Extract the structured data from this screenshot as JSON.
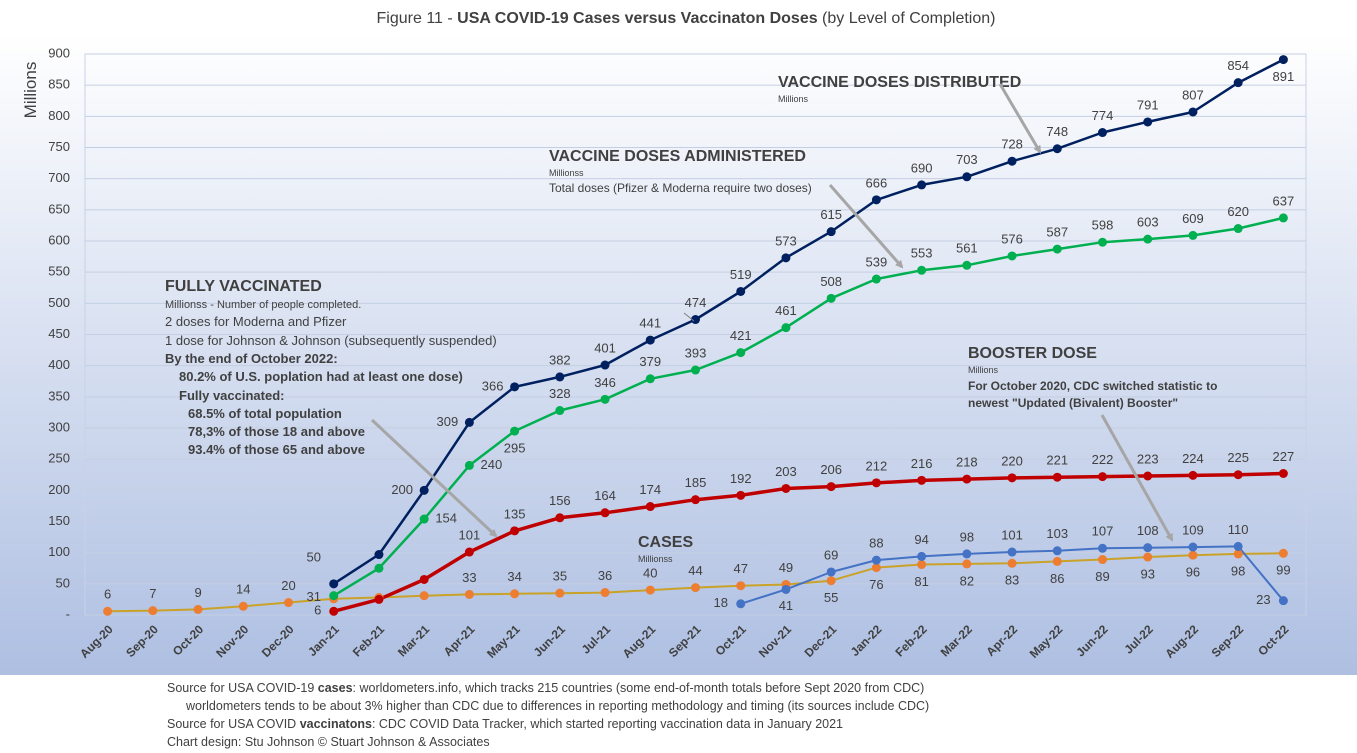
{
  "chart_data": {
    "type": "line",
    "title": [
      "Figure 11 - ",
      "USA COVID-19 Cases versus Vaccinaton Doses",
      " (by Level of Completion)"
    ],
    "y_label": "Millions",
    "categories": [
      "Aug-20",
      "Sep-20",
      "Oct-20",
      "Nov-20",
      "Dec-20",
      "Jan-21",
      "Feb-21",
      "Mar-21",
      "Apr-21",
      "May-21",
      "Jun-21",
      "Jul-21",
      "Aug-21",
      "Sep-21",
      "Oct-21",
      "Nov-21",
      "Dec-21",
      "Jan-22",
      "Feb-22",
      "Mar-22",
      "Apr-22",
      "May-22",
      "Jun-22",
      "Jul-22",
      "Aug-22",
      "Sep-22",
      "Oct-22"
    ],
    "ylim": [
      0,
      900
    ],
    "yticks": [
      {
        "value": 0,
        "label": "-"
      },
      50,
      100,
      150,
      200,
      250,
      300,
      350,
      400,
      450,
      500,
      550,
      600,
      650,
      700,
      750,
      800,
      850,
      900
    ],
    "grid": true,
    "series": [
      {
        "name": "VACCINE DOSES DISTRIBUTED",
        "color": "#002060",
        "width": 2.5,
        "values": [
          null,
          null,
          null,
          null,
          null,
          50,
          97,
          200,
          309,
          366,
          382,
          401,
          441,
          474,
          519,
          573,
          615,
          666,
          690,
          703,
          728,
          748,
          774,
          791,
          807,
          854,
          891
        ],
        "value_labels": [
          null,
          null,
          null,
          null,
          null,
          "50",
          null,
          "200",
          "309",
          "366",
          "382",
          "401",
          "441",
          "474",
          "519",
          "573",
          "615",
          "666",
          "690",
          "703",
          "728",
          "748",
          "774",
          "791",
          "807",
          "854",
          "891"
        ]
      },
      {
        "name": "VACCINE DOSES ADMINISTERED",
        "color": "#00b050",
        "width": 2.5,
        "values": [
          null,
          null,
          null,
          null,
          null,
          31,
          75,
          154,
          240,
          295,
          328,
          346,
          379,
          393,
          421,
          461,
          508,
          539,
          553,
          561,
          576,
          587,
          598,
          603,
          609,
          620,
          637
        ],
        "value_labels": [
          null,
          null,
          null,
          null,
          null,
          "31",
          null,
          "154",
          "240",
          "295",
          "328",
          "346",
          "379",
          "393",
          "421",
          "461",
          "508",
          "539",
          "553",
          "561",
          "576",
          "587",
          "598",
          "603",
          "609",
          "620",
          "637"
        ]
      },
      {
        "name": "FULLY VACCINATED",
        "color": "#c00000",
        "width": 3.5,
        "values": [
          null,
          null,
          null,
          null,
          null,
          6,
          25,
          57,
          101,
          135,
          156,
          164,
          174,
          185,
          192,
          203,
          206,
          212,
          216,
          218,
          220,
          221,
          222,
          223,
          224,
          225,
          227
        ],
        "value_labels": [
          null,
          null,
          null,
          null,
          null,
          "6",
          null,
          null,
          "101",
          "135",
          "156",
          "164",
          "174",
          "185",
          "192",
          "203",
          "206",
          "212",
          "216",
          "218",
          "220",
          "221",
          "222",
          "223",
          "224",
          "225",
          "227"
        ]
      },
      {
        "name": "BOOSTER DOSE",
        "color": "#4472c4",
        "width": 2,
        "values": [
          null,
          null,
          null,
          null,
          null,
          null,
          null,
          null,
          null,
          null,
          null,
          null,
          null,
          null,
          18,
          41,
          69,
          88,
          94,
          98,
          101,
          103,
          107,
          108,
          109,
          110,
          23
        ],
        "value_labels": [
          null,
          null,
          null,
          null,
          null,
          null,
          null,
          null,
          null,
          null,
          null,
          null,
          null,
          null,
          "18",
          "41",
          "69",
          "88",
          "94",
          "98",
          "101",
          "103",
          "107",
          "108",
          "109",
          "110",
          "23"
        ]
      },
      {
        "name": "CASES",
        "color": "#ed7d31",
        "line_color": "#c9a227",
        "width": 2,
        "values": [
          6,
          7,
          9,
          14,
          20,
          26,
          28,
          31,
          33,
          34,
          35,
          36,
          40,
          44,
          47,
          49,
          55,
          76,
          81,
          82,
          83,
          86,
          89,
          93,
          96,
          98,
          99
        ],
        "value_labels": [
          "6",
          "7",
          "9",
          "14",
          "20",
          null,
          null,
          null,
          "33",
          "34",
          "35",
          "36",
          "40",
          "44",
          "47",
          "49",
          "55",
          "76",
          "81",
          "82",
          "83",
          "86",
          "89",
          "93",
          "96",
          "98",
          "99"
        ]
      }
    ],
    "annotations": {
      "distributed": [
        "Millions"
      ],
      "administered": [
        "Millionss",
        "Total doses (Pfizer & Moderna require two doses)"
      ],
      "fully": [
        "Millionss - Number of people completed.",
        "2 doses for Moderna and Pfizer",
        "1 dose for Johnson & Johnson (subsequently suspended)",
        "By the end of October 2022:",
        "80.2% of U.S. poplation had at least one dose)",
        "Fully vaccinated:",
        "68.5% of total population",
        "78,3% of those 18 and above",
        "93.4% of those 65 and above"
      ],
      "booster": [
        "Millions",
        "For October 2020, CDC switched statistic to",
        "newest \"Updated (Bivalent) Booster\""
      ],
      "cases": [
        "Millionss"
      ]
    },
    "source": [
      [
        "Source for USA COVID-19 ",
        "cases",
        ": worldometers.info, which tracks 215 countries  (some end-of-month totals before Sept 2020 from CDC)"
      ],
      [
        "worldometers tends to be about 3% higher than CDC due to differences in reporting methodology and timing (its sources include CDC)"
      ],
      [
        "Source for USA COVID ",
        "vaccinatons",
        ": CDC COVID Data Tracker, which started reporting vaccination data in January 2021"
      ],
      [
        "Chart design: Stu Johnson © Stuart Johnson & Associates"
      ]
    ]
  }
}
